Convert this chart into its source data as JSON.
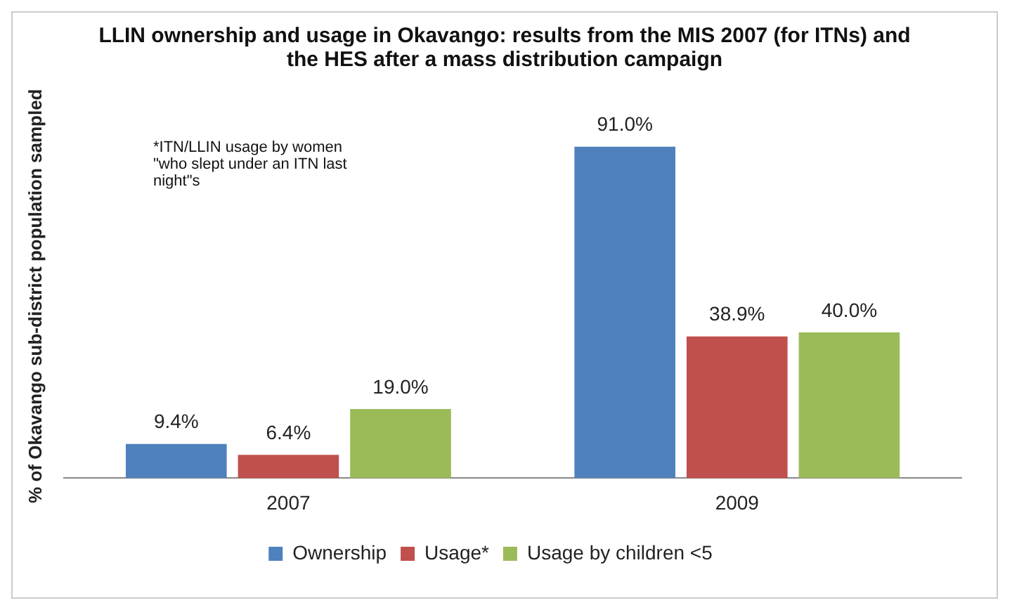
{
  "chart_data": {
    "type": "bar",
    "title": "LLIN ownership and usage in Okavango: results from the MIS 2007 (for ITNs) and the HES after a mass distribution campaign",
    "ylabel": "% of Okavango sub-district population sampled",
    "categories": [
      "2007",
      "2009"
    ],
    "series": [
      {
        "name": "Ownership",
        "color": "#4f81bd",
        "values": [
          9.4,
          91.0
        ],
        "value_labels": [
          "9.4%",
          "91.0%"
        ]
      },
      {
        "name": "Usage*",
        "color": "#c0504d",
        "values": [
          6.4,
          38.9
        ],
        "value_labels": [
          "6.4%",
          "38.9%"
        ]
      },
      {
        "name": "Usage by children <5",
        "color": "#9bbb59",
        "values": [
          19.0,
          40.0
        ],
        "value_labels": [
          "19.0%",
          "40.0%"
        ]
      }
    ],
    "annotations": [
      "*ITN/LLIN usage by women \"who slept under an ITN last night\"s"
    ],
    "legend": "bottom",
    "grid": false,
    "tick_labels": "x"
  }
}
